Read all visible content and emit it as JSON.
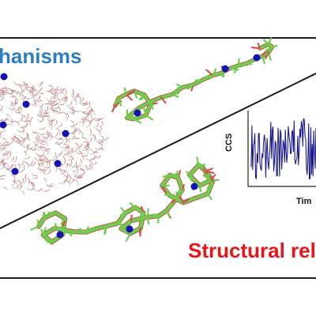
{
  "titles": {
    "top": "hanisms",
    "bottom": "Structural rela"
  },
  "colors": {
    "top_title": "#2e7fc2",
    "bottom_title": "#e8151b",
    "frame": "#1a1a1a",
    "trace": "#1a1a8c",
    "ion": "#1414b4",
    "peptide_green": "#6bd04d",
    "peptide_red": "#c9574e",
    "water": "#c8c8c8"
  },
  "inset": {
    "y_axis_label": "CCS",
    "x_axis_label": "Tim"
  }
}
